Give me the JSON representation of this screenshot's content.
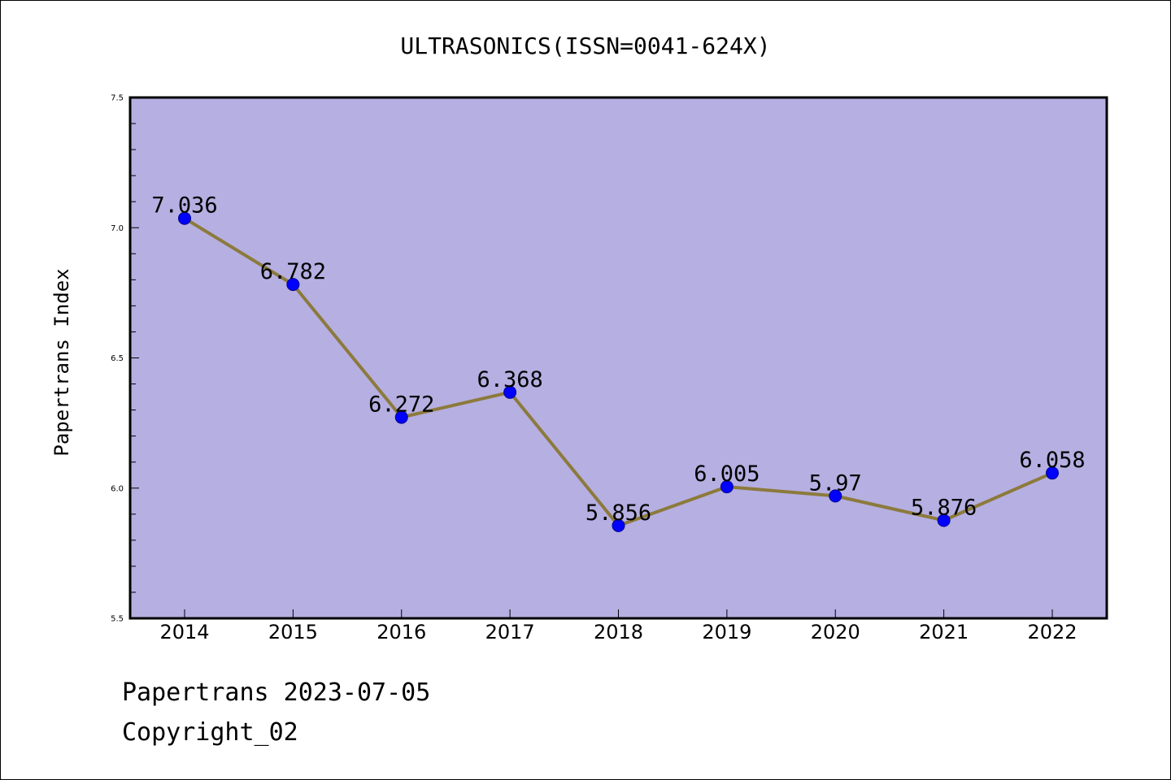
{
  "chart_data": {
    "type": "line",
    "title": "ULTRASONICS(ISSN=0041-624X)",
    "xlabel": "",
    "ylabel": "Papertrans Index",
    "categories": [
      "2014",
      "2015",
      "2016",
      "2017",
      "2018",
      "2019",
      "2020",
      "2021",
      "2022"
    ],
    "series": [
      {
        "values": [
          7.036,
          6.782,
          6.272,
          6.368,
          5.856,
          6.005,
          5.97,
          5.876,
          6.058
        ],
        "labels": [
          "7.036",
          "6.782",
          "6.272",
          "6.368",
          "5.856",
          "6.005",
          "5.97",
          "5.876",
          "6.058"
        ]
      }
    ],
    "ylim": [
      5.5,
      7.5
    ],
    "yticks": [
      "5.5",
      "6.0",
      "6.5",
      "7.0",
      "7.5"
    ],
    "grid": false,
    "legend": "none",
    "colors": {
      "plot_background": "#b5afe2",
      "line": "#8c7a3c",
      "marker": "#0000ff",
      "axis": "#000000"
    }
  },
  "footer": {
    "line1": "Papertrans 2023-07-05",
    "line2": "Copyright_02"
  }
}
